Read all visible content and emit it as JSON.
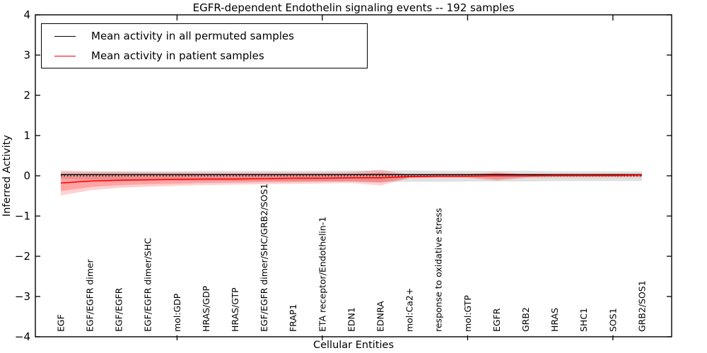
{
  "chart_data": {
    "type": "line",
    "title": "EGFR-dependent Endothelin signaling events -- 192 samples",
    "xlabel": "Cellular Entities",
    "ylabel": "Inferred Activity",
    "ylim": [
      -4,
      4
    ],
    "grid": false,
    "legend_position": "upper left",
    "axis_color": "#000000",
    "ytick_values": [
      4,
      3,
      2,
      1,
      0,
      -1,
      -2,
      -3,
      -4
    ],
    "ytick_labels": [
      "4",
      "3",
      "2",
      "1",
      "0",
      "−1",
      "−2",
      "−3",
      "−4"
    ],
    "xtick_major_indices": [
      4,
      9,
      14,
      19
    ],
    "categories": [
      "EGF",
      "EGF/EGFR dimer",
      "EGF/EGFR",
      "EGF/EGFR dimer/SHC",
      "mol:GDP",
      "HRAS/GDP",
      "HRAS/GTP",
      "EGF/EGFR dimer/SHC/GRB2/SOS1",
      "FRAP1",
      "ETA receptor/Endothelin-1",
      "EDN1",
      "EDNRA",
      "mol:Ca2+",
      "response to oxidative stress",
      "mol:GTP",
      "EGFR",
      "GRB2",
      "HRAS",
      "SHC1",
      "SOS1",
      "GRB2/SOS1"
    ],
    "zero_line": {
      "value": 0,
      "style": "dotted",
      "color": "#000000"
    },
    "series": [
      {
        "name": "Mean activity in all permuted samples",
        "color": "#000000",
        "line_width": 1.3,
        "values": [
          0.03,
          0.03,
          0.03,
          0.03,
          0.03,
          0.03,
          0.03,
          0.03,
          0.03,
          0.03,
          0.03,
          0.03,
          0.03,
          0.03,
          0.03,
          0.03,
          0.03,
          0.03,
          0.03,
          0.03,
          0.03
        ],
        "band_upper": [
          0.1,
          0.1,
          0.11,
          0.11,
          0.11,
          0.12,
          0.12,
          0.12,
          0.12,
          0.12,
          0.13,
          0.13,
          0.13,
          0.12,
          0.12,
          0.12,
          0.12,
          0.11,
          0.11,
          0.11,
          0.11
        ],
        "band_lower": [
          -0.08,
          -0.09,
          -0.1,
          -0.11,
          -0.12,
          -0.12,
          -0.13,
          -0.13,
          -0.14,
          -0.14,
          -0.15,
          -0.15,
          -0.15,
          -0.15,
          -0.14,
          -0.14,
          -0.14,
          -0.13,
          -0.13,
          -0.13,
          -0.13
        ],
        "band_color": "#999999",
        "band_opacity": 0.3
      },
      {
        "name": "Mean activity in patient samples",
        "color": "#ff0000",
        "line_width": 1.6,
        "values": [
          -0.18,
          -0.13,
          -0.11,
          -0.1,
          -0.09,
          -0.08,
          -0.08,
          -0.07,
          -0.06,
          -0.06,
          -0.05,
          -0.05,
          -0.02,
          -0.01,
          -0.01,
          0.0,
          0.0,
          0.01,
          0.01,
          0.01,
          0.02
        ],
        "band_upper": [
          0.13,
          0.11,
          0.1,
          0.09,
          0.09,
          0.08,
          0.08,
          0.08,
          0.08,
          0.08,
          0.09,
          0.15,
          0.03,
          0.04,
          0.04,
          0.09,
          0.04,
          0.04,
          0.04,
          0.05,
          0.05
        ],
        "band_lower": [
          -0.49,
          -0.36,
          -0.3,
          -0.27,
          -0.25,
          -0.23,
          -0.22,
          -0.21,
          -0.2,
          -0.19,
          -0.18,
          -0.24,
          -0.06,
          -0.05,
          -0.05,
          -0.12,
          -0.05,
          -0.04,
          -0.04,
          -0.04,
          -0.04
        ],
        "band_color": "#ff0000",
        "band_opacity": 0.18,
        "inner_band_fraction": 0.65,
        "inner_band_opacity": 0.22
      }
    ]
  },
  "legend": {
    "entries": [
      {
        "label": "Mean activity in all permuted samples",
        "color": "#000000"
      },
      {
        "label": "Mean activity in patient samples",
        "color": "#ff0000"
      }
    ]
  }
}
